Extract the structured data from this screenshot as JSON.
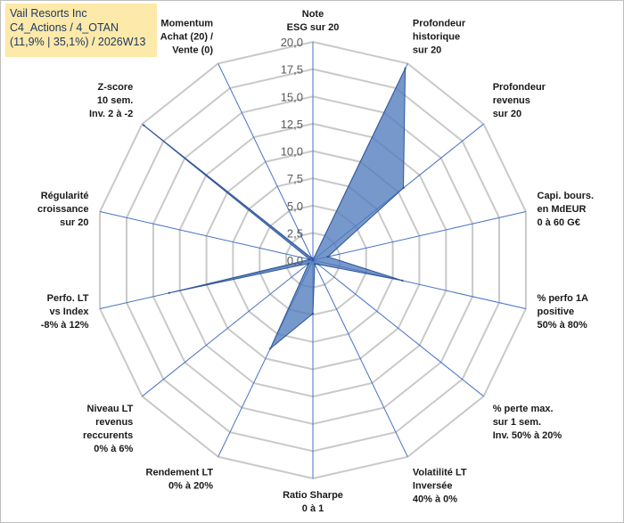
{
  "title_box": {
    "line1": "Vail Resorts Inc",
    "line2": "C4_Actions / 4_OTAN",
    "line3": "(11,9% | 35,1%) / 2026W13"
  },
  "colors": {
    "fill": "#4f7bbd",
    "fill_opacity": 0.78,
    "stroke": "#2f5597",
    "grid": "#c9c9c9",
    "axis": "#4472c4"
  },
  "chart_data": {
    "type": "radar",
    "ylim": [
      0,
      20
    ],
    "ticks": [
      "0,0",
      "2,5",
      "5,0",
      "7,5",
      "10,0",
      "12,5",
      "15,0",
      "17,5",
      "20,0"
    ],
    "categories": [
      [
        "Note",
        "ESG sur 20"
      ],
      [
        "Profondeur",
        "historique",
        "sur 20"
      ],
      [
        "Profondeur",
        "revenus",
        "sur 20"
      ],
      [
        "Capi. bours.",
        "en MdEUR",
        "0 à 60 G€"
      ],
      [
        "% perfo 1A",
        "positive",
        "50% à 80%"
      ],
      [
        "% perte max.",
        "sur 1 sem.",
        "Inv. 50% à 20%"
      ],
      [
        "Volatilité LT",
        "Inversée",
        "40% à 0%"
      ],
      [
        "Ratio Sharpe",
        "0 à 1"
      ],
      [
        "Rendement LT",
        "0% à 20%"
      ],
      [
        "Niveau LT",
        "revenus",
        "reccurents",
        "0% à 6%"
      ],
      [
        "Perfo. LT",
        "vs Index",
        "-8% à 12%"
      ],
      [
        "Régularité",
        "croissance",
        "sur 20"
      ],
      [
        "Z-score",
        "10 sem.",
        "Inv. 2 à -2"
      ],
      [
        "Momentum",
        "Achat (20) /",
        "Vente (0)"
      ]
    ],
    "series": [
      {
        "values": [
          0,
          19.5,
          10.6,
          1.4,
          8.4,
          0.6,
          0.4,
          4.9,
          9.0,
          0.5,
          13.5,
          0.3,
          19.8,
          0.2
        ]
      }
    ],
    "grid": true,
    "legend": "none"
  }
}
